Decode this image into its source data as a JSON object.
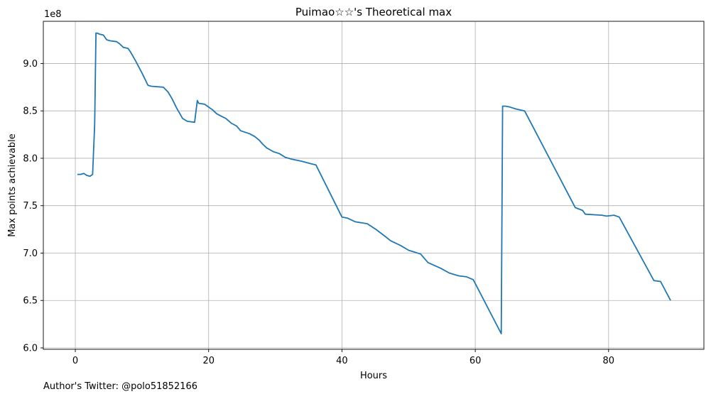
{
  "chart_data": {
    "type": "line",
    "title": "Puimao☆☆'s Theoretical max",
    "xlabel": "Hours",
    "ylabel": "Max points achievable",
    "y_offset_label": "1e8",
    "xlim": [
      -4.8,
      94.3
    ],
    "ylim": [
      0.5985,
      0.9445
    ],
    "x_ticks": [
      0,
      20,
      40,
      60,
      80
    ],
    "x_tick_labels": [
      "0",
      "20",
      "40",
      "60",
      "80"
    ],
    "y_ticks": [
      0.6,
      0.65,
      0.7,
      0.75,
      0.8,
      0.85,
      0.9
    ],
    "y_tick_labels": [
      "6.0",
      "6.5",
      "7.0",
      "7.5",
      "8.0",
      "8.5",
      "9.0"
    ],
    "grid": true,
    "line_color": "#1f77b4",
    "series": [
      {
        "name": "",
        "x": [
          0.3,
          0.8,
          1.3,
          1.7,
          2.2,
          2.6,
          2.9,
          3.1,
          3.3,
          3.6,
          4.2,
          4.7,
          5.2,
          6.2,
          6.6,
          7.2,
          7.9,
          8.3,
          9.1,
          10.0,
          10.9,
          11.4,
          13.2,
          13.9,
          14.5,
          15.2,
          16.1,
          16.8,
          17.9,
          18.3,
          18.5,
          19.4,
          19.8,
          20.6,
          21.2,
          22.0,
          22.6,
          23.4,
          24.2,
          24.8,
          26.1,
          26.9,
          27.6,
          28.1,
          28.7,
          29.7,
          30.6,
          31.5,
          32.5,
          33.9,
          35.5,
          36.1,
          40.0,
          40.8,
          42.0,
          43.8,
          45.1,
          46.4,
          47.3,
          48.8,
          50.0,
          51.8,
          52.9,
          54.8,
          56.1,
          57.5,
          58.7,
          59.7,
          63.9,
          64.1,
          64.5,
          65.2,
          66.1,
          67.4,
          75.0,
          76.1,
          76.5,
          79.0,
          79.7,
          80.8,
          81.6,
          86.8,
          87.8,
          89.3
        ],
        "y": [
          0.783,
          0.783,
          0.784,
          0.782,
          0.781,
          0.783,
          0.836,
          0.932,
          0.932,
          0.931,
          0.93,
          0.925,
          0.924,
          0.923,
          0.921,
          0.917,
          0.916,
          0.912,
          0.902,
          0.89,
          0.877,
          0.876,
          0.875,
          0.87,
          0.863,
          0.853,
          0.842,
          0.839,
          0.838,
          0.861,
          0.858,
          0.857,
          0.855,
          0.851,
          0.847,
          0.844,
          0.842,
          0.837,
          0.834,
          0.829,
          0.826,
          0.823,
          0.819,
          0.815,
          0.811,
          0.807,
          0.805,
          0.801,
          0.799,
          0.797,
          0.794,
          0.793,
          0.738,
          0.737,
          0.733,
          0.731,
          0.725,
          0.718,
          0.713,
          0.708,
          0.703,
          0.699,
          0.69,
          0.684,
          0.679,
          0.676,
          0.675,
          0.672,
          0.615,
          0.855,
          0.855,
          0.854,
          0.852,
          0.85,
          0.748,
          0.745,
          0.741,
          0.74,
          0.739,
          0.74,
          0.738,
          0.671,
          0.67,
          0.65
        ]
      }
    ]
  },
  "footer": {
    "text": "Author's Twitter: @polo51852166"
  }
}
